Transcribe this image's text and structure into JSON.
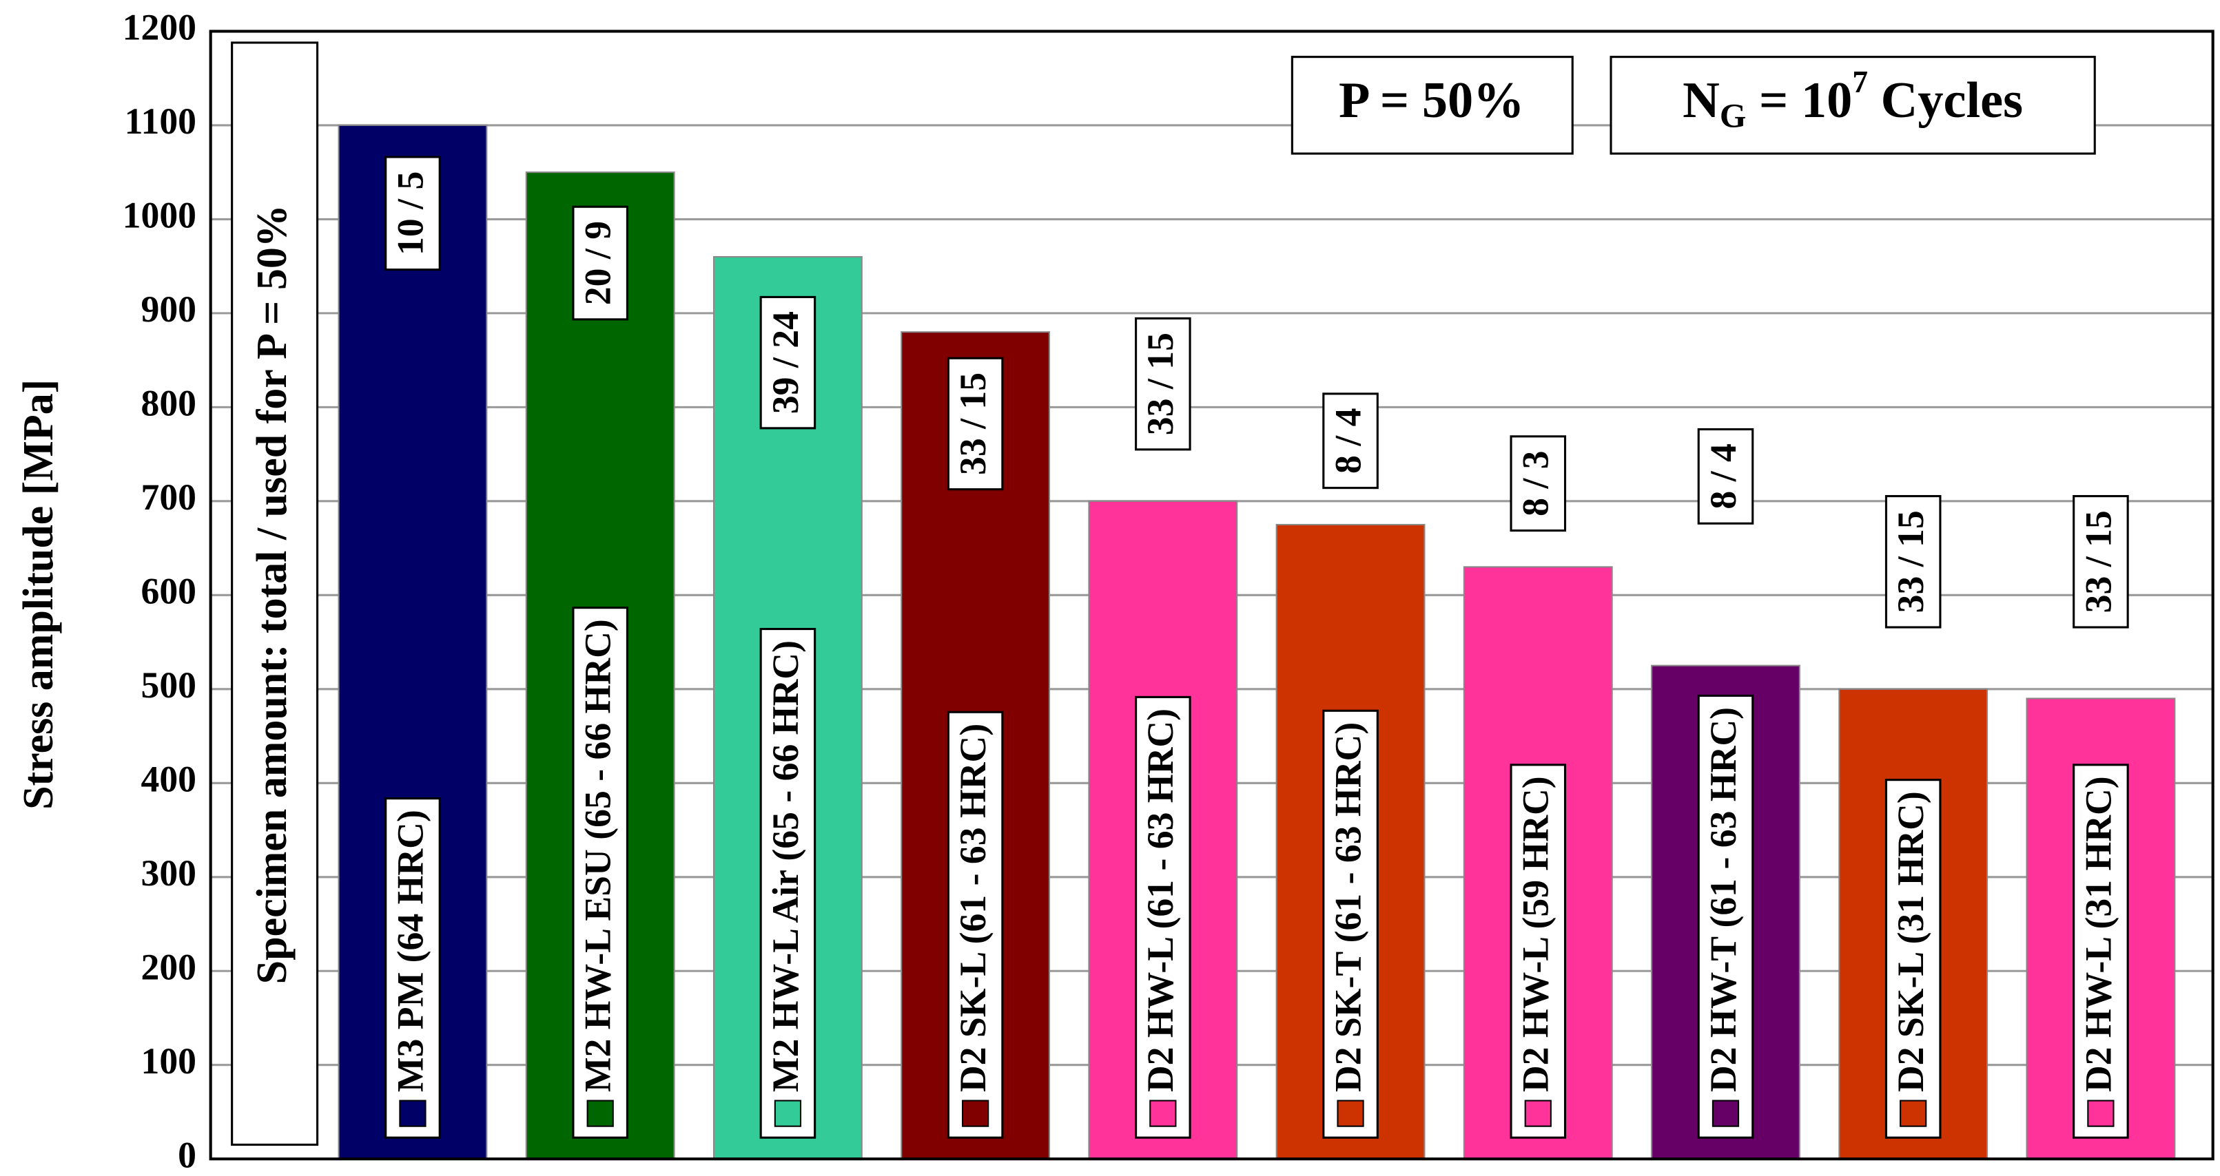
{
  "chart_data": {
    "type": "bar",
    "y_label": "Stress amplitude [MPa]",
    "side_note": "Specimen amount: total / used for P = 50%",
    "boxes": [
      [
        "P = 50%"
      ],
      [
        "N",
        "G",
        " = 10",
        "7",
        " Cycles"
      ]
    ],
    "categories": [
      "M3 PM (64 HRC)",
      "M2 HW-L ESU (65 - 66 HRC)",
      "M2 HW-L Air (65 - 66 HRC)",
      "D2 SK-L (61 - 63 HRC)",
      "D2 HW-L (61 - 63 HRC)",
      "D2 SK-T (61 - 63 HRC)",
      "D2 HW-L (59 HRC)",
      "D2 HW-T (61 - 63 HRC)",
      "D2 SK-L (31 HRC)",
      "D2 HW-L (31 HRC)"
    ],
    "values": [
      1100,
      1050,
      960,
      880,
      700,
      675,
      630,
      525,
      500,
      490
    ],
    "colors": [
      "#000066",
      "#006600",
      "#33cc99",
      "#800000",
      "#ff3399",
      "#cc3300",
      "#ff3399",
      "#660066",
      "#cc3300",
      "#ff3399"
    ],
    "specimen_counts": [
      "10 / 5",
      "20 / 9",
      "39 / 24",
      "33 / 15",
      "33 / 15",
      "8 / 4",
      "8 / 3",
      "8 / 4",
      "33 / 15",
      "33 / 15"
    ],
    "ylim": [
      0,
      1200
    ],
    "yticks": [
      0,
      100,
      200,
      300,
      400,
      500,
      600,
      700,
      800,
      900,
      1000,
      1100,
      1200
    ],
    "grid": true
  }
}
